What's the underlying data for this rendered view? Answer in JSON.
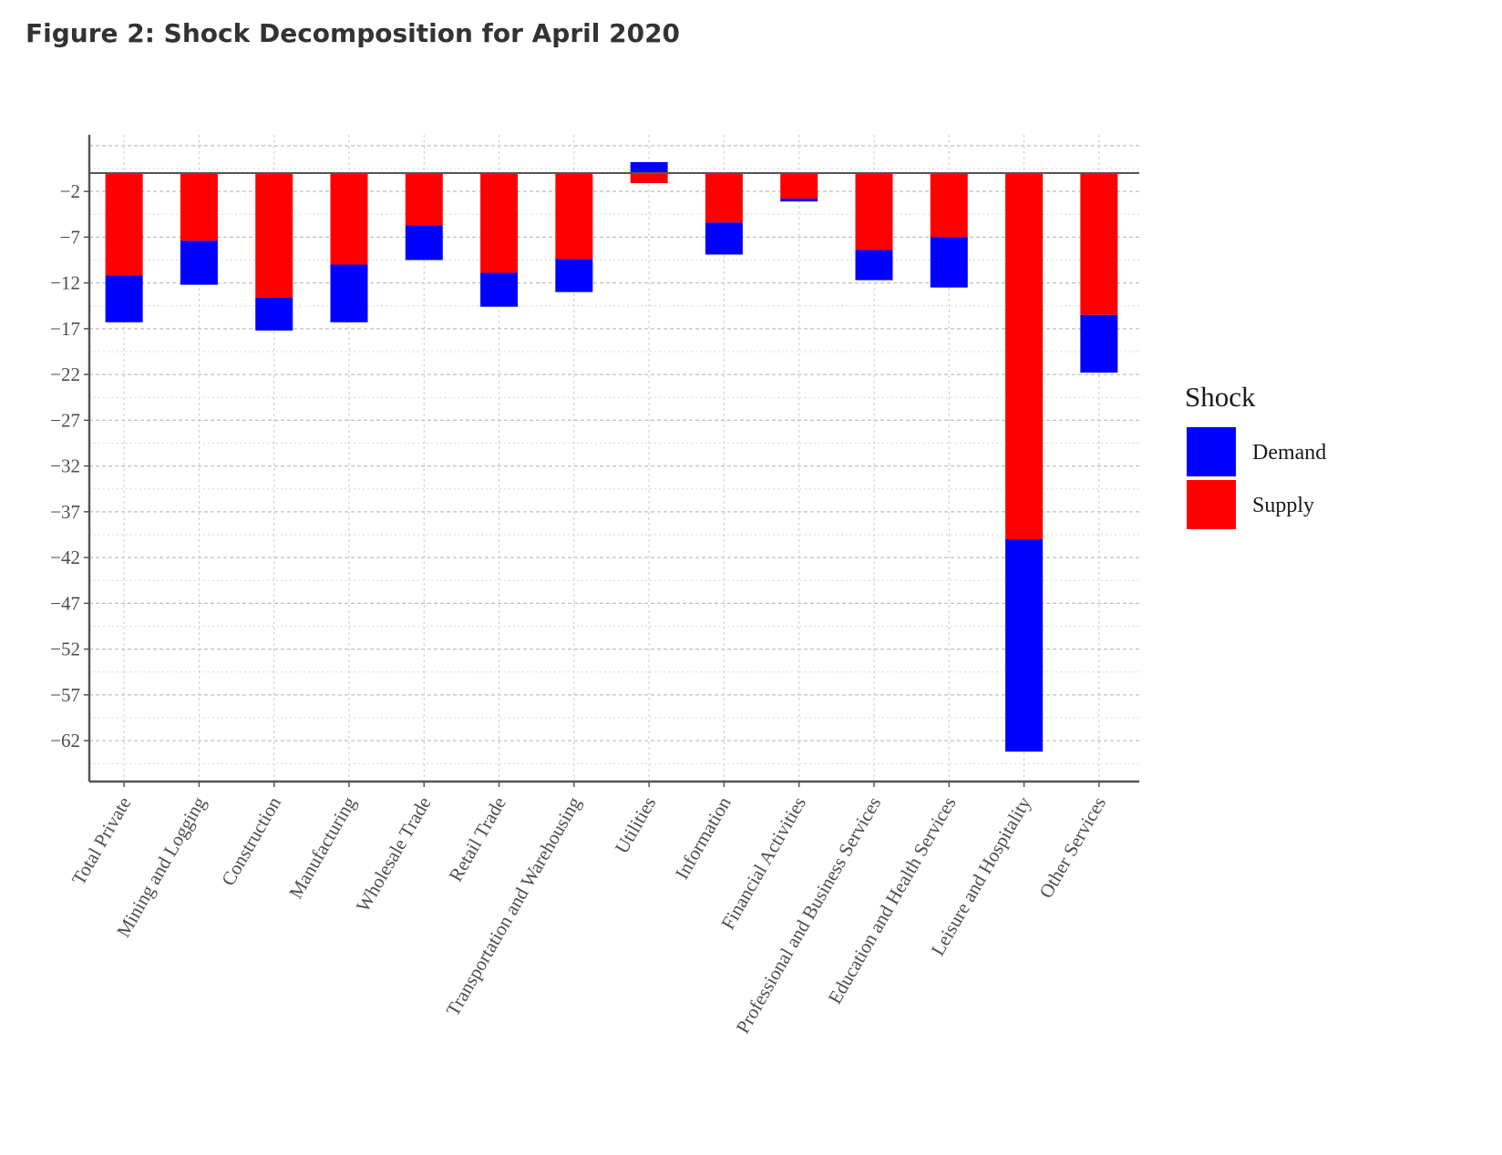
{
  "figure_title": "Figure 2: Shock Decomposition for April 2020",
  "chart_data": {
    "type": "bar",
    "stacked": true,
    "categories": [
      "Total Private",
      "Mining and Logging",
      "Construction",
      "Manufacturing",
      "Wholesale Trade",
      "Retail Trade",
      "Transportation and Warehousing",
      "Utilities",
      "Information",
      "Financial Activities",
      "Professional and Business Services",
      "Education and Health Services",
      "Leisure and Hospitality",
      "Other Services"
    ],
    "series": [
      {
        "name": "Supply",
        "color": "#ff0000",
        "values": [
          -11.2,
          -7.4,
          -13.6,
          -10.0,
          -5.7,
          -10.9,
          -9.4,
          -1.1,
          -5.4,
          -2.8,
          -8.4,
          -7.0,
          -40.0,
          -15.5
        ]
      },
      {
        "name": "Demand",
        "color": "#0000ff",
        "values": [
          -5.1,
          -4.8,
          -3.6,
          -6.3,
          -3.8,
          -3.7,
          -3.6,
          1.2,
          -3.5,
          -0.3,
          -3.3,
          -5.5,
          -23.2,
          -6.3
        ]
      }
    ],
    "ytick_labels": [
      "-2",
      "-7",
      "-12",
      "-17",
      "-22",
      "-27",
      "-32",
      "-37",
      "-42",
      "-47",
      "-52",
      "-57",
      "-62"
    ],
    "ylim": [
      -66.5,
      4.2
    ],
    "legend": {
      "title": "Shock",
      "position": "right",
      "entries": [
        "Demand",
        "Supply"
      ]
    },
    "grid": true
  }
}
